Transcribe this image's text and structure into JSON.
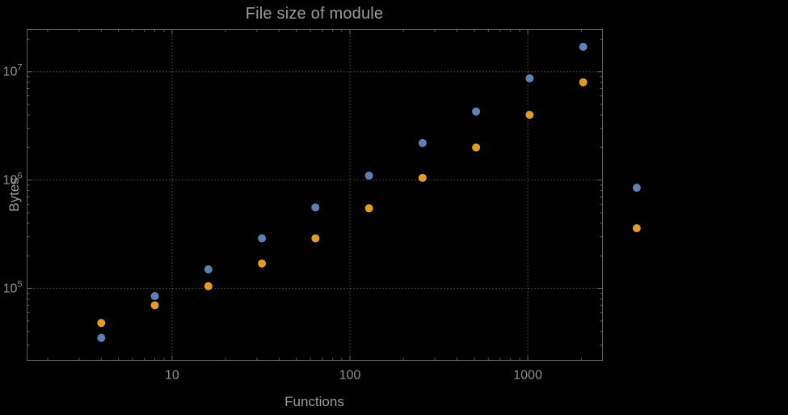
{
  "chart_data": {
    "type": "scatter",
    "title": "File size of module",
    "xlabel": "Functions",
    "ylabel": "Bytes",
    "x_scale": "log",
    "y_scale": "log",
    "x": [
      4,
      8,
      16,
      32,
      64,
      128,
      256,
      512,
      1024,
      2048,
      4096
    ],
    "series": [
      {
        "name": "series-1-blue",
        "color": "#5E81B5",
        "values": [
          35000,
          85000,
          150000,
          290000,
          560000,
          1100000,
          2200000,
          4300000,
          8700000,
          17000000,
          850000
        ]
      },
      {
        "name": "series-2-orange",
        "color": "#E19C24",
        "values": [
          48000,
          70000,
          105000,
          170000,
          290000,
          550000,
          1050000,
          2000000,
          4000000,
          8000000,
          360000
        ]
      }
    ],
    "x_ticks": [
      10,
      100,
      1000
    ],
    "x_tick_labels": [
      "10",
      "100",
      "1000"
    ],
    "y_ticks": [
      100000,
      1000000,
      10000000
    ],
    "y_tick_labels": [
      {
        "base": "10",
        "exp": "5"
      },
      {
        "base": "10",
        "exp": "6"
      },
      {
        "base": "10",
        "exp": "7"
      }
    ],
    "xlim_log": [
      0.185,
      3.42
    ],
    "ylim_log": [
      4.336,
      7.39
    ],
    "grid": true,
    "grid_style": "dotted",
    "legend": false,
    "marker_radius": 5,
    "background": "#000000",
    "text_color": "#9a9a9a",
    "tick_label_color": "#8f8f8f",
    "frame_color": "#606060",
    "grid_color": "#7a7a7a"
  }
}
